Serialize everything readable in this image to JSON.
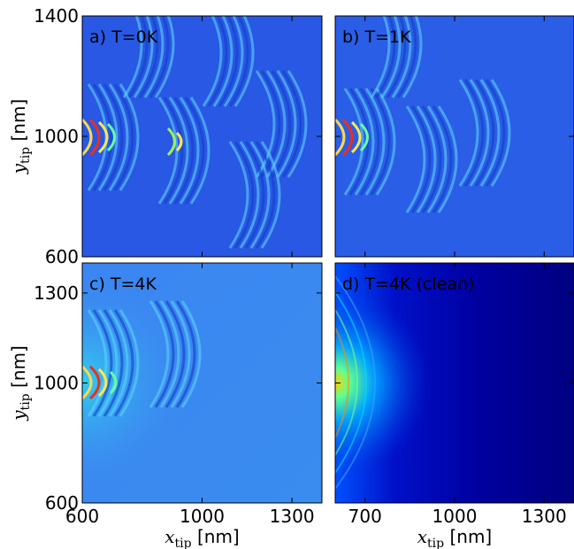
{
  "chart_data": [
    {
      "type": "image",
      "title": "a) T=0K",
      "xlim": [
        600,
        1400
      ],
      "ylim": [
        600,
        1400
      ],
      "xticks": [
        600,
        1000,
        1300
      ],
      "yticks": [
        600,
        1000,
        1400
      ],
      "xtick_labels": false,
      "ytick_labels": true,
      "ylabel": {
        "symbol": "y",
        "subscript": "tip",
        "unit": "[nm]"
      }
    },
    {
      "type": "image",
      "title": "b) T=1K",
      "xlim": [
        600,
        1400
      ],
      "ylim": [
        600,
        1400
      ],
      "xticks": [
        700,
        1000,
        1300
      ],
      "yticks": [
        600,
        1000,
        1400
      ],
      "xtick_labels": false,
      "ytick_labels": false
    },
    {
      "type": "image",
      "title": "c) T=4K",
      "xlim": [
        600,
        1400
      ],
      "ylim": [
        600,
        1400
      ],
      "xticks": [
        600,
        1000,
        1300
      ],
      "yticks": [
        600,
        1000,
        1300
      ],
      "xtick_labels": true,
      "ytick_labels": true,
      "xlabel": {
        "symbol": "x",
        "subscript": "tip",
        "unit": "[nm]"
      },
      "ylabel": {
        "symbol": "y",
        "subscript": "tip",
        "unit": "[nm]"
      }
    },
    {
      "type": "image",
      "title": "d) T=4K (clean)",
      "xlim": [
        600,
        1400
      ],
      "ylim": [
        600,
        1400
      ],
      "xticks": [
        700,
        1000,
        1300
      ],
      "yticks": [
        600,
        1000,
        1300
      ],
      "xtick_labels": true,
      "ytick_labels": false,
      "xlabel": {
        "symbol": "x",
        "subscript": "tip",
        "unit": "[nm]"
      }
    }
  ]
}
